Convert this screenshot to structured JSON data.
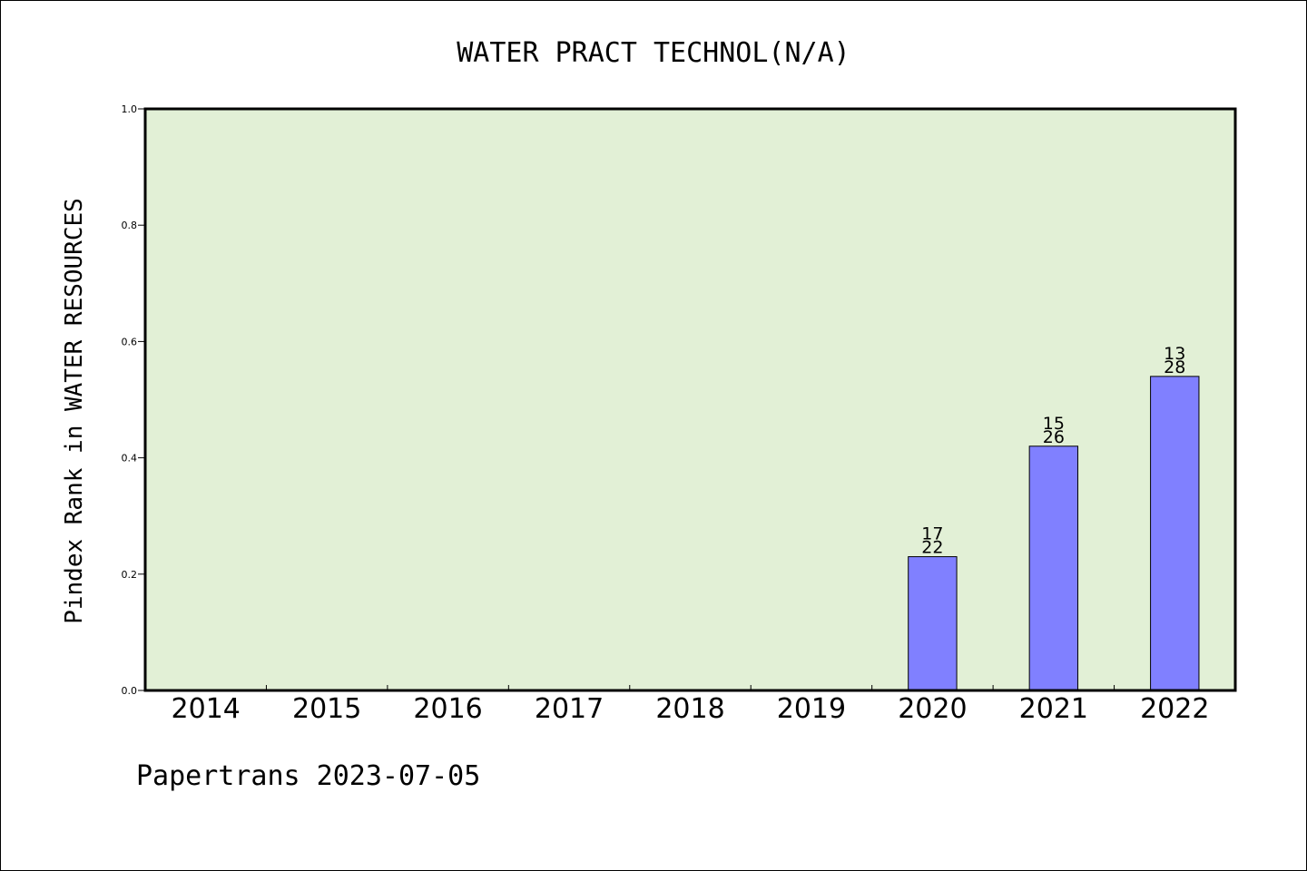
{
  "chart_data": {
    "type": "bar",
    "title": "WATER PRACT TECHNOL(N/A)",
    "ylabel": "Pindex Rank in WATER RESOURCES",
    "xlabel": "",
    "categories": [
      "2014",
      "2015",
      "2016",
      "2017",
      "2018",
      "2019",
      "2020",
      "2021",
      "2022"
    ],
    "values": [
      null,
      null,
      null,
      null,
      null,
      null,
      0.23,
      0.42,
      0.54
    ],
    "bar_labels": [
      null,
      null,
      null,
      null,
      null,
      null,
      {
        "top": "17",
        "bottom": "22"
      },
      {
        "top": "15",
        "bottom": "26"
      },
      {
        "top": "13",
        "bottom": "28"
      }
    ],
    "ylim": [
      0,
      1.0
    ],
    "yticks": [
      "0.0",
      "0.2",
      "0.4",
      "0.6",
      "0.8",
      "1.0"
    ],
    "grid": false,
    "colors": {
      "plot_background": "#e2f0d6",
      "bar_fill": "#8080ff",
      "axis": "#000000"
    }
  },
  "footer": {
    "text": "Papertrans 2023-07-05"
  }
}
